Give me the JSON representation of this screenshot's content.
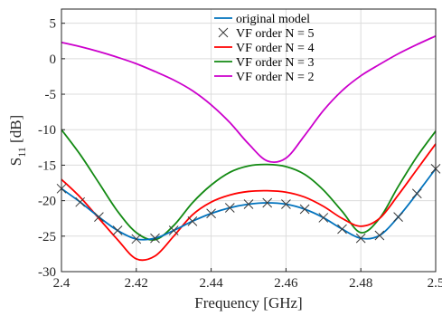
{
  "chart_data": {
    "type": "line",
    "title": "",
    "xlabel": "Frequency [GHz]",
    "ylabel_main": "S",
    "ylabel_sub": "11",
    "ylabel_unit": " [dB]",
    "xlim": [
      2.4,
      2.5
    ],
    "ylim": [
      -30,
      7
    ],
    "xticks": [
      2.4,
      2.42,
      2.44,
      2.46,
      2.48,
      2.5
    ],
    "xtick_labels": [
      "2.4",
      "2.42",
      "2.44",
      "2.46",
      "2.48",
      "2.5"
    ],
    "yticks": [
      5,
      0,
      -5,
      -10,
      -15,
      -20,
      -25,
      -30
    ],
    "ytick_labels": [
      "5",
      "0",
      "-5",
      "-10",
      "-15",
      "-20",
      "-25",
      "-30"
    ],
    "grid": true,
    "legend_position": "top-right",
    "series": [
      {
        "name": "original model",
        "color": "#0072BD",
        "style": "line",
        "x": [
          2.4,
          2.405,
          2.41,
          2.415,
          2.42,
          2.425,
          2.43,
          2.435,
          2.44,
          2.445,
          2.45,
          2.455,
          2.46,
          2.465,
          2.47,
          2.475,
          2.48,
          2.485,
          2.49,
          2.495,
          2.5
        ],
        "y": [
          -18.3,
          -20.2,
          -22.3,
          -24.2,
          -25.4,
          -25.3,
          -24.2,
          -22.9,
          -21.8,
          -21.0,
          -20.5,
          -20.3,
          -20.5,
          -21.2,
          -22.4,
          -24.0,
          -25.3,
          -24.9,
          -22.3,
          -19.0,
          -15.5
        ]
      },
      {
        "name": "VF order N = 5",
        "color": "#3a3a3a",
        "style": "marker-x",
        "x": [
          2.4,
          2.405,
          2.41,
          2.415,
          2.42,
          2.425,
          2.43,
          2.435,
          2.44,
          2.445,
          2.45,
          2.455,
          2.46,
          2.465,
          2.47,
          2.475,
          2.48,
          2.485,
          2.49,
          2.495,
          2.5
        ],
        "y": [
          -18.3,
          -20.2,
          -22.3,
          -24.2,
          -25.4,
          -25.3,
          -24.2,
          -22.9,
          -21.8,
          -21.0,
          -20.5,
          -20.3,
          -20.5,
          -21.2,
          -22.4,
          -24.0,
          -25.3,
          -24.9,
          -22.3,
          -19.0,
          -15.5
        ]
      },
      {
        "name": "VF order N = 4",
        "color": "#FF0000",
        "style": "line",
        "x": [
          2.4,
          2.405,
          2.41,
          2.415,
          2.42,
          2.425,
          2.43,
          2.435,
          2.44,
          2.445,
          2.45,
          2.455,
          2.46,
          2.465,
          2.47,
          2.475,
          2.48,
          2.485,
          2.49,
          2.495,
          2.5
        ],
        "y": [
          -17.0,
          -19.5,
          -22.5,
          -25.5,
          -28.2,
          -27.8,
          -25.0,
          -22.0,
          -20.2,
          -19.2,
          -18.7,
          -18.6,
          -18.8,
          -19.5,
          -20.8,
          -22.5,
          -23.6,
          -22.5,
          -19.2,
          -15.6,
          -12.0
        ]
      },
      {
        "name": "VF order N = 3",
        "color": "#138A13",
        "style": "line",
        "x": [
          2.4,
          2.405,
          2.41,
          2.415,
          2.42,
          2.425,
          2.43,
          2.435,
          2.44,
          2.445,
          2.45,
          2.455,
          2.46,
          2.465,
          2.47,
          2.475,
          2.48,
          2.485,
          2.49,
          2.495,
          2.5
        ],
        "y": [
          -10.0,
          -13.5,
          -17.5,
          -21.5,
          -24.5,
          -25.5,
          -23.5,
          -20.3,
          -17.8,
          -16.0,
          -15.1,
          -14.9,
          -15.2,
          -16.3,
          -18.5,
          -21.5,
          -24.5,
          -22.5,
          -18.0,
          -13.8,
          -10.2
        ]
      },
      {
        "name": "VF order N = 2",
        "color": "#CC00CC",
        "style": "line",
        "x": [
          2.4,
          2.405,
          2.41,
          2.415,
          2.42,
          2.425,
          2.43,
          2.435,
          2.44,
          2.445,
          2.45,
          2.455,
          2.46,
          2.465,
          2.47,
          2.475,
          2.48,
          2.485,
          2.49,
          2.495,
          2.5
        ],
        "y": [
          2.3,
          1.7,
          1.0,
          0.2,
          -0.7,
          -1.8,
          -3.0,
          -4.5,
          -6.5,
          -9.0,
          -12.0,
          -14.4,
          -14.0,
          -10.8,
          -7.3,
          -4.5,
          -2.4,
          -0.8,
          0.7,
          2.0,
          3.2
        ]
      }
    ]
  }
}
